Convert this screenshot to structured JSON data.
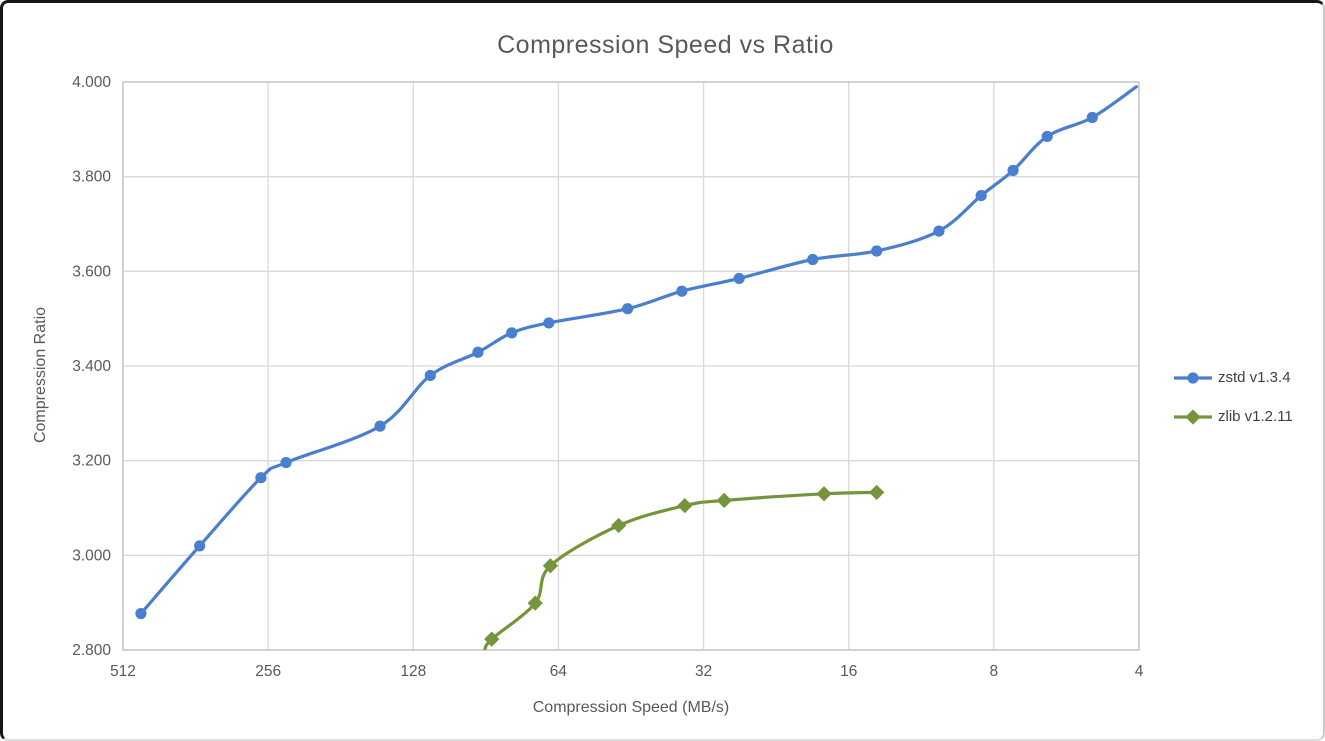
{
  "window": {
    "background": "#ffffff",
    "border_color": "#161616"
  },
  "chart_data": {
    "type": "line",
    "title": "Compression Speed vs Ratio",
    "xlabel": "Compression Speed (MB/s)",
    "ylabel": "Compression Ratio",
    "x_scale": "log2_reversed",
    "xlim": [
      512,
      4
    ],
    "ylim": [
      2.8,
      4.0
    ],
    "grid": true,
    "legend_position": "right",
    "x_ticks": [
      "512",
      "256",
      "128",
      "64",
      "32",
      "16",
      "8",
      "4"
    ],
    "y_ticks": [
      "2.800",
      "3.000",
      "3.200",
      "3.400",
      "3.600",
      "3.800",
      "4.000"
    ],
    "grid_color": "#d9d9d9",
    "axis_line_color": "#c6c6c6",
    "tick_color": "#595959",
    "series": [
      {
        "name": "zstd v1.3.4",
        "color": "#4a7ecf",
        "marker": "circle",
        "points": [
          [
            470,
            2.877
          ],
          [
            355,
            3.02
          ],
          [
            265,
            3.164
          ],
          [
            235,
            3.196
          ],
          [
            150,
            3.273
          ],
          [
            118,
            3.38
          ],
          [
            94,
            3.429
          ],
          [
            80,
            3.47
          ],
          [
            67,
            3.491
          ],
          [
            46,
            3.521
          ],
          [
            35.5,
            3.558
          ],
          [
            27,
            3.585
          ],
          [
            19,
            3.625
          ],
          [
            14,
            3.643
          ],
          [
            10.4,
            3.685
          ],
          [
            8.5,
            3.76
          ],
          [
            7.3,
            3.813
          ],
          [
            6.2,
            3.885
          ],
          [
            5.0,
            3.925
          ],
          [
            4.05,
            3.99
          ]
        ]
      },
      {
        "name": "zlib v1.2.11",
        "color": "#76943c",
        "marker": "diamond",
        "points": [
          [
            91,
            2.8
          ],
          [
            88,
            2.823
          ],
          [
            71.5,
            2.899
          ],
          [
            66.5,
            2.978
          ],
          [
            48,
            3.063
          ],
          [
            35,
            3.105
          ],
          [
            29,
            3.116
          ],
          [
            18,
            3.13
          ],
          [
            14,
            3.133
          ]
        ]
      }
    ]
  }
}
